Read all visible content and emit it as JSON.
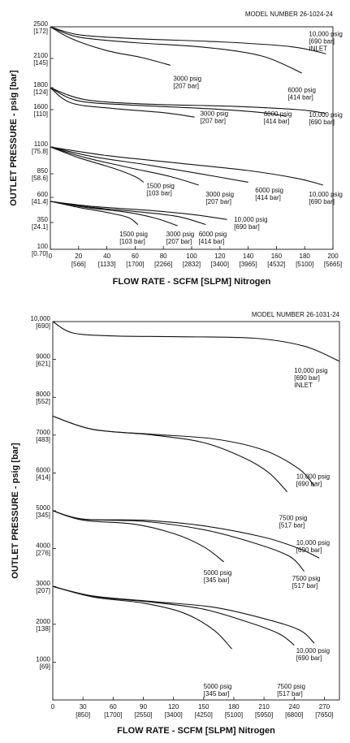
{
  "chart_data": [
    {
      "type": "line",
      "model_label": "MODEL NUMBER  26-1024-24",
      "xlabel": "FLOW RATE - SCFM [SLPM] Nitrogen",
      "ylabel": "OUTLET PRESSURE - psig [bar]",
      "xlim": [
        0,
        200
      ],
      "ylim": [
        100,
        2500
      ],
      "x_ticks": [
        {
          "v": 0,
          "top": "0",
          "bottom": ""
        },
        {
          "v": 20,
          "top": "20",
          "bottom": "[566]"
        },
        {
          "v": 40,
          "top": "40",
          "bottom": "[1133]"
        },
        {
          "v": 60,
          "top": "60",
          "bottom": "[1700]"
        },
        {
          "v": 80,
          "top": "80",
          "bottom": "[2266]"
        },
        {
          "v": 100,
          "top": "100",
          "bottom": "[2832]"
        },
        {
          "v": 120,
          "top": "120",
          "bottom": "[3400]"
        },
        {
          "v": 140,
          "top": "140",
          "bottom": "[3965]"
        },
        {
          "v": 160,
          "top": "160",
          "bottom": "[4532]"
        },
        {
          "v": 180,
          "top": "180",
          "bottom": "[5100]"
        },
        {
          "v": 200,
          "top": "200",
          "bottom": "[5665]"
        }
      ],
      "y_ticks": [
        {
          "v": 2500,
          "top": "2500",
          "bottom": "[172]"
        },
        {
          "v": 2100,
          "top": "2100",
          "bottom": "[145]"
        },
        {
          "v": 1800,
          "top": "1800",
          "bottom": "[124]"
        },
        {
          "v": 1600,
          "top": "1600",
          "bottom": "[110]"
        },
        {
          "v": 1100,
          "top": "1100",
          "bottom": "[75.8]"
        },
        {
          "v": 850,
          "top": "850",
          "bottom": "[58.6]"
        },
        {
          "v": 600,
          "top": "600",
          "bottom": "[41.4]"
        },
        {
          "v": 350,
          "top": "350",
          "bottom": "[24.1]"
        },
        {
          "v": 100,
          "top": "100",
          "bottom": "[0.70]"
        }
      ],
      "series": [
        {
          "group": 2500,
          "label": [
            "10,000 psig",
            "[690 bar]",
            "INLET"
          ],
          "label_at": [
            183,
            2380
          ],
          "points": [
            [
              0,
              2500
            ],
            [
              20,
              2400
            ],
            [
              60,
              2350
            ],
            [
              120,
              2310
            ],
            [
              170,
              2250
            ],
            [
              195,
              2160
            ]
          ]
        },
        {
          "group": 2500,
          "label": [
            "6000 psig",
            "[414 bar]"
          ],
          "label_at": [
            168,
            1760
          ],
          "points": [
            [
              0,
              2500
            ],
            [
              20,
              2370
            ],
            [
              60,
              2300
            ],
            [
              110,
              2240
            ],
            [
              150,
              2130
            ],
            [
              178,
              1950
            ]
          ]
        },
        {
          "group": 2500,
          "label": [
            "3000 psig",
            "[207 bar]"
          ],
          "label_at": [
            87,
            1870
          ],
          "points": [
            [
              0,
              2500
            ],
            [
              15,
              2350
            ],
            [
              40,
              2200
            ],
            [
              65,
              2110
            ],
            [
              85,
              2030
            ]
          ]
        },
        {
          "group": 1800,
          "label": [
            "10,000 psig",
            "[690 bar]"
          ],
          "label_at": [
            183,
            1500
          ],
          "points": [
            [
              0,
              1800
            ],
            [
              25,
              1690
            ],
            [
              70,
              1650
            ],
            [
              130,
              1630
            ],
            [
              175,
              1600
            ],
            [
              195,
              1550
            ]
          ]
        },
        {
          "group": 1800,
          "label": [
            "6000 psig",
            "[414 bar]"
          ],
          "label_at": [
            151,
            1515
          ],
          "points": [
            [
              0,
              1800
            ],
            [
              20,
              1680
            ],
            [
              60,
              1640
            ],
            [
              110,
              1610
            ],
            [
              150,
              1560
            ],
            [
              167,
              1510
            ]
          ]
        },
        {
          "group": 1800,
          "label": [
            "3000 psig",
            "[207 bar]"
          ],
          "label_at": [
            106,
            1520
          ],
          "points": [
            [
              0,
              1800
            ],
            [
              15,
              1660
            ],
            [
              45,
              1610
            ],
            [
              80,
              1560
            ],
            [
              102,
              1500
            ]
          ]
        },
        {
          "group": 1100,
          "label": [
            "10,000 psig",
            "[690 bar]"
          ],
          "label_at": [
            183,
            610
          ],
          "points": [
            [
              0,
              1100
            ],
            [
              40,
              1020
            ],
            [
              90,
              950
            ],
            [
              140,
              880
            ],
            [
              175,
              800
            ],
            [
              193,
              730
            ]
          ]
        },
        {
          "group": 1100,
          "label": [
            "6000 psig",
            "[414 bar]"
          ],
          "label_at": [
            145,
            650
          ],
          "points": [
            [
              0,
              1100
            ],
            [
              30,
              1010
            ],
            [
              70,
              930
            ],
            [
              110,
              840
            ],
            [
              140,
              760
            ]
          ]
        },
        {
          "group": 1100,
          "label": [
            "3000 psig",
            "[207 bar]"
          ],
          "label_at": [
            110,
            610
          ],
          "points": [
            [
              0,
              1100
            ],
            [
              25,
              1000
            ],
            [
              55,
              910
            ],
            [
              85,
              820
            ],
            [
              105,
              730
            ]
          ]
        },
        {
          "group": 1100,
          "label": [
            "1500 psig",
            "[103 bar]"
          ],
          "label_at": [
            68,
            700
          ],
          "points": [
            [
              0,
              1100
            ],
            [
              20,
              1000
            ],
            [
              45,
              900
            ],
            [
              60,
              820
            ],
            [
              66,
              760
            ]
          ]
        },
        {
          "group": 600,
          "label": [
            "10,000 psig",
            "[690 bar]"
          ],
          "label_at": [
            130,
            360
          ],
          "points": [
            [
              0,
              560
            ],
            [
              30,
              510
            ],
            [
              70,
              470
            ],
            [
              100,
              430
            ],
            [
              125,
              380
            ]
          ]
        },
        {
          "group": 600,
          "label": [
            "6000 psig",
            "[414 bar]"
          ],
          "label_at": [
            105,
            220
          ],
          "points": [
            [
              0,
              560
            ],
            [
              30,
              500
            ],
            [
              60,
              460
            ],
            [
              90,
              410
            ],
            [
              110,
              330
            ]
          ]
        },
        {
          "group": 600,
          "label": [
            "3000 psig",
            "[207 bar]"
          ],
          "label_at": [
            82,
            220
          ],
          "points": [
            [
              0,
              560
            ],
            [
              25,
              500
            ],
            [
              55,
              450
            ],
            [
              75,
              390
            ],
            [
              90,
              320
            ]
          ]
        },
        {
          "group": 600,
          "label": [
            "1500 psig",
            "[103 bar]"
          ],
          "label_at": [
            49,
            220
          ],
          "points": [
            [
              0,
              560
            ],
            [
              20,
              500
            ],
            [
              40,
              450
            ],
            [
              55,
              400
            ],
            [
              62,
              330
            ]
          ]
        }
      ]
    },
    {
      "type": "line",
      "model_label": "MODEL NUMBER  26-1031-24",
      "xlabel": "FLOW RATE - SCFM [SLPM] Nitrogen",
      "ylabel": "OUTLET PRESSURE - psig [bar]",
      "xlim": [
        0,
        285
      ],
      "ylim": [
        0,
        10000
      ],
      "x_ticks": [
        {
          "v": 0,
          "top": "0",
          "bottom": ""
        },
        {
          "v": 30,
          "top": "30",
          "bottom": "[850]"
        },
        {
          "v": 60,
          "top": "60",
          "bottom": "[1700]"
        },
        {
          "v": 90,
          "top": "90",
          "bottom": "[2550]"
        },
        {
          "v": 120,
          "top": "120",
          "bottom": "[3400]"
        },
        {
          "v": 150,
          "top": "150",
          "bottom": "[4250]"
        },
        {
          "v": 180,
          "top": "180",
          "bottom": "[5100]"
        },
        {
          "v": 210,
          "top": "210",
          "bottom": "[5950]"
        },
        {
          "v": 240,
          "top": "240",
          "bottom": "[6800]"
        },
        {
          "v": 270,
          "top": "270",
          "bottom": "[7650]"
        }
      ],
      "y_ticks": [
        {
          "v": 10000,
          "top": "10,000",
          "bottom": "[690]"
        },
        {
          "v": 9000,
          "top": "9000",
          "bottom": "[621]"
        },
        {
          "v": 8000,
          "top": "8000",
          "bottom": "[552]"
        },
        {
          "v": 7000,
          "top": "7000",
          "bottom": "[483]"
        },
        {
          "v": 6000,
          "top": "6000",
          "bottom": "[414]"
        },
        {
          "v": 5000,
          "top": "5000",
          "bottom": "[345]"
        },
        {
          "v": 4000,
          "top": "4000",
          "bottom": "[276]"
        },
        {
          "v": 3000,
          "top": "3000",
          "bottom": "[207]"
        },
        {
          "v": 2000,
          "top": "2000",
          "bottom": "[138]"
        },
        {
          "v": 1000,
          "top": "1000",
          "bottom": "[69]"
        }
      ],
      "series": [
        {
          "group": 10000,
          "label": [
            "10,000 psig",
            "[690 bar]",
            "INLET"
          ],
          "label_at": [
            240,
            8650
          ],
          "points": [
            [
              0,
              10000
            ],
            [
              20,
              9700
            ],
            [
              60,
              9620
            ],
            [
              120,
              9600
            ],
            [
              200,
              9560
            ],
            [
              250,
              9350
            ],
            [
              285,
              8950
            ]
          ]
        },
        {
          "group": 7500,
          "label": [
            "10,000 psig",
            "[690 bar]"
          ],
          "label_at": [
            242,
            5850
          ],
          "points": [
            [
              0,
              7500
            ],
            [
              40,
              7150
            ],
            [
              100,
              7020
            ],
            [
              160,
              6900
            ],
            [
              210,
              6600
            ],
            [
              245,
              6100
            ],
            [
              260,
              5650
            ]
          ]
        },
        {
          "group": 7500,
          "label": [
            "7500 psig",
            "[517 bar]"
          ],
          "label_at": [
            225,
            4750
          ],
          "points": [
            [
              0,
              7500
            ],
            [
              40,
              7150
            ],
            [
              100,
              7000
            ],
            [
              150,
              6800
            ],
            [
              190,
              6400
            ],
            [
              215,
              6000
            ],
            [
              233,
              5500
            ]
          ]
        },
        {
          "group": 5000,
          "label": [
            "10,000 psig",
            "[690 bar]"
          ],
          "label_at": [
            242,
            4100
          ],
          "points": [
            [
              0,
              5000
            ],
            [
              30,
              4780
            ],
            [
              90,
              4750
            ],
            [
              150,
              4600
            ],
            [
              210,
              4300
            ],
            [
              245,
              4000
            ],
            [
              265,
              3750
            ]
          ]
        },
        {
          "group": 5000,
          "label": [
            "7500 psig",
            "[517 bar]"
          ],
          "label_at": [
            238,
            3150
          ],
          "points": [
            [
              0,
              5000
            ],
            [
              30,
              4780
            ],
            [
              90,
              4720
            ],
            [
              150,
              4500
            ],
            [
              200,
              4150
            ],
            [
              235,
              3800
            ],
            [
              250,
              3400
            ]
          ]
        },
        {
          "group": 5000,
          "label": [
            "5000 psig",
            "[345 bar]"
          ],
          "label_at": [
            150,
            3300
          ],
          "points": [
            [
              0,
              5000
            ],
            [
              30,
              4750
            ],
            [
              80,
              4650
            ],
            [
              120,
              4400
            ],
            [
              150,
              4050
            ],
            [
              170,
              3650
            ]
          ]
        },
        {
          "group": 3000,
          "label": [
            "10,000 psig",
            "[690 bar]"
          ],
          "label_at": [
            242,
            1250
          ],
          "points": [
            [
              0,
              3000
            ],
            [
              40,
              2750
            ],
            [
              100,
              2600
            ],
            [
              160,
              2450
            ],
            [
              210,
              2150
            ],
            [
              245,
              1850
            ],
            [
              260,
              1500
            ]
          ]
        },
        {
          "group": 3000,
          "label": [
            "7500 psig",
            "[517 bar]"
          ],
          "label_at": [
            223,
            300
          ],
          "points": [
            [
              0,
              3000
            ],
            [
              40,
              2740
            ],
            [
              100,
              2580
            ],
            [
              150,
              2400
            ],
            [
              195,
              2050
            ],
            [
              225,
              1750
            ],
            [
              240,
              1450
            ]
          ]
        },
        {
          "group": 3000,
          "label": [
            "5000 psig",
            "[345 bar]"
          ],
          "label_at": [
            150,
            300
          ],
          "points": [
            [
              0,
              3000
            ],
            [
              40,
              2720
            ],
            [
              90,
              2560
            ],
            [
              130,
              2300
            ],
            [
              160,
              1850
            ],
            [
              178,
              1350
            ]
          ]
        }
      ]
    }
  ]
}
